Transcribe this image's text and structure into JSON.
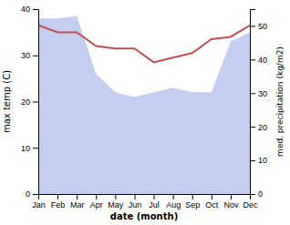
{
  "chart_data": {
    "type": "line",
    "xlabel": "date (month)",
    "ylabel": "max temp (C)",
    "y2label": "med. precipitation (kg/m2)",
    "categories": [
      "Jan",
      "Feb",
      "Mar",
      "Apr",
      "May",
      "Jun",
      "Jul",
      "Aug",
      "Sep",
      "Oct",
      "Nov",
      "Dec"
    ],
    "series": [
      {
        "type": "area",
        "axis": "y2",
        "color": "#c5cef0",
        "values": [
          52.25,
          52.25,
          52.9375,
          35.75,
          30.25,
          28.875,
          30.25,
          31.625,
          30.25,
          30.25,
          45.375,
          48.125
        ]
      },
      {
        "type": "line",
        "color": "#c0504d",
        "values": [
          36.5,
          35.0,
          35.0,
          32.0,
          31.5,
          31.5,
          28.5,
          29.5,
          30.5,
          33.5,
          34.0,
          36.5
        ]
      }
    ],
    "ylim": [
      0,
      40
    ],
    "yticks": [
      0,
      10,
      20,
      30,
      40
    ],
    "y2lim": [
      0,
      55
    ],
    "y2ticks": [
      0,
      10,
      20,
      30,
      40,
      50
    ],
    "grid": false
  }
}
